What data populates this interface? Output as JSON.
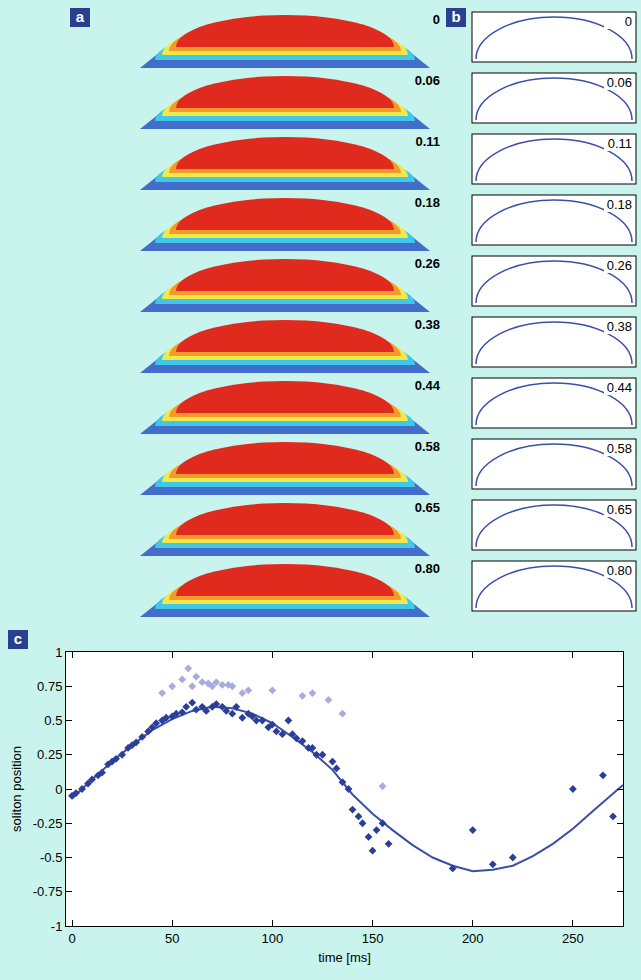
{
  "panel_a": {
    "letter": "a",
    "labels": [
      "0",
      "0.06",
      "0.11",
      "0.18",
      "0.26",
      "0.38",
      "0.44",
      "0.58",
      "0.65",
      "0.80"
    ]
  },
  "panel_b": {
    "letter": "b",
    "labels": [
      "0",
      "0.06",
      "0.11",
      "0.18",
      "0.26",
      "0.38",
      "0.44",
      "0.58",
      "0.65",
      "0.80"
    ]
  },
  "chart_data": {
    "type": "scatter",
    "letter": "c",
    "x_label": "time [ms]",
    "y_label": "soliton position",
    "xlim": [
      -3,
      275
    ],
    "xticks": [
      0,
      50,
      100,
      150,
      200,
      250
    ],
    "ylim": [
      -1,
      1
    ],
    "yticks": [
      -1,
      -0.75,
      -0.5,
      -0.25,
      0,
      0.25,
      0.5,
      0.75,
      1
    ],
    "grid": false,
    "series": [
      {
        "type": "line",
        "color": "#3b4fa8",
        "line_style": "solid",
        "x": [
          0,
          10,
          20,
          30,
          40,
          50,
          60,
          70,
          80,
          90,
          100,
          110,
          120,
          130,
          140,
          150,
          160,
          170,
          180,
          190,
          200,
          210,
          220,
          230,
          240,
          250,
          260,
          270,
          275
        ],
        "values": [
          -0.07,
          0.07,
          0.2,
          0.32,
          0.43,
          0.51,
          0.57,
          0.6,
          0.59,
          0.55,
          0.48,
          0.38,
          0.27,
          0.14,
          -0.04,
          -0.18,
          -0.3,
          -0.41,
          -0.5,
          -0.56,
          -0.6,
          -0.59,
          -0.56,
          -0.49,
          -0.4,
          -0.29,
          -0.16,
          -0.03,
          0.03
        ]
      },
      {
        "type": "scatter",
        "color": "#a9abdf",
        "marker": "diamond",
        "x": [
          45,
          50,
          55,
          58,
          60,
          62,
          65,
          68,
          70,
          72,
          75,
          78,
          80,
          85,
          88,
          100,
          115,
          120,
          128,
          135,
          155
        ],
        "values": [
          0.7,
          0.75,
          0.8,
          0.88,
          0.75,
          0.82,
          0.78,
          0.77,
          0.75,
          0.78,
          0.76,
          0.76,
          0.75,
          0.7,
          0.72,
          0.72,
          0.68,
          0.7,
          0.65,
          0.55,
          0.02
        ]
      },
      {
        "type": "scatter",
        "color": "#2b3f99",
        "marker": "diamond",
        "x": [
          0,
          2,
          5,
          8,
          10,
          13,
          15,
          18,
          20,
          22,
          25,
          28,
          30,
          32,
          35,
          38,
          40,
          42,
          45,
          47,
          50,
          52,
          55,
          57,
          60,
          62,
          65,
          67,
          70,
          72,
          75,
          77,
          80,
          82,
          85,
          88,
          90,
          92,
          95,
          98,
          100,
          102,
          105,
          108,
          110,
          112,
          115,
          118,
          120,
          122,
          125,
          130,
          132,
          135,
          138,
          140,
          143,
          145,
          148,
          150,
          152,
          155,
          158,
          190,
          200,
          210,
          220,
          250,
          265,
          270
        ],
        "values": [
          -0.05,
          -0.03,
          0.0,
          0.04,
          0.07,
          0.1,
          0.12,
          0.18,
          0.2,
          0.22,
          0.25,
          0.3,
          0.32,
          0.34,
          0.38,
          0.42,
          0.45,
          0.48,
          0.5,
          0.52,
          0.53,
          0.55,
          0.56,
          0.6,
          0.63,
          0.58,
          0.6,
          0.57,
          0.6,
          0.62,
          0.6,
          0.57,
          0.55,
          0.6,
          0.52,
          0.55,
          0.53,
          0.5,
          0.5,
          0.45,
          0.47,
          0.42,
          0.4,
          0.5,
          0.4,
          0.37,
          0.35,
          0.3,
          0.3,
          0.25,
          0.25,
          0.2,
          0.15,
          0.05,
          0.0,
          -0.15,
          -0.2,
          -0.25,
          -0.35,
          -0.45,
          -0.3,
          -0.25,
          -0.4,
          -0.58,
          -0.3,
          -0.55,
          -0.5,
          0.0,
          0.1,
          -0.2
        ]
      }
    ]
  }
}
